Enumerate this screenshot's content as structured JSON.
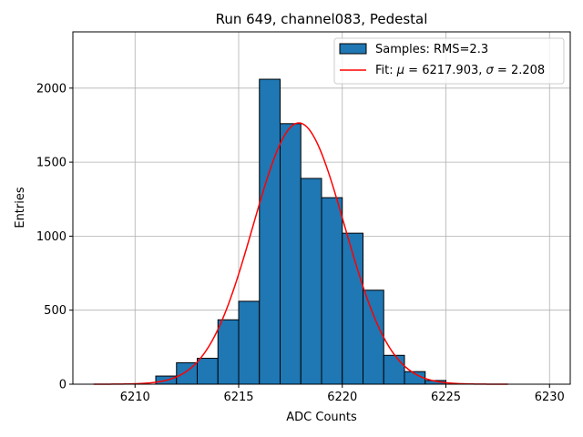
{
  "chart_data": {
    "type": "bar",
    "title": "Run 649, channel083, Pedestal",
    "xlabel": "ADC Counts",
    "ylabel": "Entries",
    "xlim": [
      6207,
      6231
    ],
    "ylim": [
      0,
      2380
    ],
    "xticks": [
      6210,
      6215,
      6220,
      6225,
      6230
    ],
    "yticks": [
      0,
      500,
      1000,
      1500,
      2000
    ],
    "grid": true,
    "legend_position": "top-right",
    "histogram": {
      "name": "Samples: RMS=2.3",
      "color": "#1f77b4",
      "bin_edges": [
        6211,
        6212,
        6213,
        6214,
        6215,
        6216,
        6217,
        6218,
        6219,
        6220,
        6221,
        6222,
        6223,
        6224,
        6225
      ],
      "counts": [
        55,
        145,
        175,
        435,
        560,
        2060,
        1760,
        1390,
        1260,
        1020,
        635,
        195,
        85,
        25
      ]
    },
    "fit": {
      "name_prefix": "Fit: ",
      "mu_symbol": "μ",
      "sigma_symbol": "σ",
      "mu": 6217.903,
      "sigma": 2.208,
      "mu_text": "6217.903",
      "sigma_text": "2.208",
      "amplitude": 1765,
      "x_range": [
        6208,
        6228
      ],
      "color": "#ff0000"
    }
  }
}
